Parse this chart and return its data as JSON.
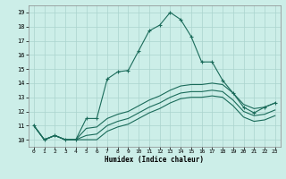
{
  "xlabel": "Humidex (Indice chaleur)",
  "ylabel": "",
  "bg_color": "#cceee8",
  "grid_color": "#aad4ce",
  "line_color": "#1a6b5a",
  "xlim": [
    -0.5,
    23.5
  ],
  "ylim": [
    9.5,
    19.5
  ],
  "xticks": [
    0,
    1,
    2,
    3,
    4,
    5,
    6,
    7,
    8,
    9,
    10,
    11,
    12,
    13,
    14,
    15,
    16,
    17,
    18,
    19,
    20,
    21,
    22,
    23
  ],
  "yticks": [
    10,
    11,
    12,
    13,
    14,
    15,
    16,
    17,
    18,
    19
  ],
  "line1_x": [
    0,
    1,
    2,
    3,
    4,
    5,
    6,
    7,
    8,
    9,
    10,
    11,
    12,
    13,
    14,
    15,
    16,
    17,
    18,
    19,
    20,
    21,
    22,
    23
  ],
  "line1_y": [
    11,
    10,
    10.3,
    10,
    10,
    11.5,
    11.5,
    14.3,
    14.8,
    14.9,
    16.3,
    17.7,
    18.1,
    19.0,
    18.5,
    17.3,
    15.5,
    15.5,
    14.2,
    13.3,
    12.3,
    11.9,
    12.3,
    12.6
  ],
  "line2_x": [
    0,
    1,
    2,
    3,
    4,
    5,
    6,
    7,
    8,
    9,
    10,
    11,
    12,
    13,
    14,
    15,
    16,
    17,
    18,
    19,
    20,
    21,
    22,
    23
  ],
  "line2_y": [
    11,
    10,
    10.3,
    10,
    10,
    10.8,
    10.9,
    11.5,
    11.8,
    12.0,
    12.4,
    12.8,
    13.1,
    13.5,
    13.8,
    13.9,
    13.9,
    14.0,
    13.9,
    13.3,
    12.5,
    12.2,
    12.3,
    12.6
  ],
  "line3_x": [
    0,
    1,
    2,
    3,
    4,
    5,
    6,
    7,
    8,
    9,
    10,
    11,
    12,
    13,
    14,
    15,
    16,
    17,
    18,
    19,
    20,
    21,
    22,
    23
  ],
  "line3_y": [
    11,
    10,
    10.3,
    10,
    10,
    10.3,
    10.4,
    11.0,
    11.3,
    11.5,
    11.9,
    12.3,
    12.6,
    13.0,
    13.3,
    13.4,
    13.4,
    13.5,
    13.4,
    12.8,
    12.0,
    11.7,
    11.8,
    12.1
  ],
  "line4_x": [
    0,
    1,
    2,
    3,
    4,
    5,
    6,
    7,
    8,
    9,
    10,
    11,
    12,
    13,
    14,
    15,
    16,
    17,
    18,
    19,
    20,
    21,
    22,
    23
  ],
  "line4_y": [
    11,
    10,
    10.3,
    10,
    10,
    10.0,
    10.0,
    10.6,
    10.9,
    11.1,
    11.5,
    11.9,
    12.2,
    12.6,
    12.9,
    13.0,
    13.0,
    13.1,
    13.0,
    12.4,
    11.6,
    11.3,
    11.4,
    11.7
  ]
}
